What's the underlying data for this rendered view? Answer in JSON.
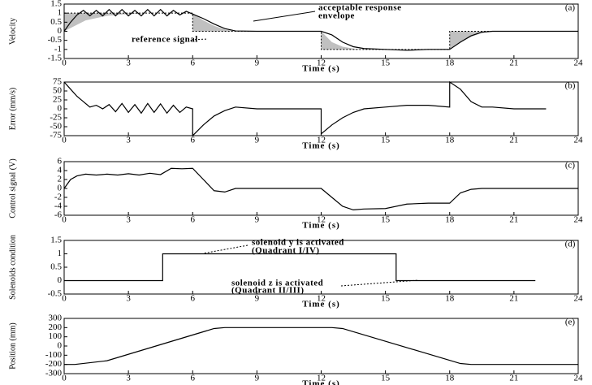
{
  "chart_data": [
    {
      "type": "line",
      "panel_label": "(a)",
      "y_label": "Velocity",
      "x_label": "Time (s)",
      "xlim": [
        0,
        24
      ],
      "xticks": [
        0,
        3,
        6,
        9,
        12,
        15,
        18,
        21,
        24
      ],
      "ylim": [
        -1.5,
        1.5
      ],
      "yticks": [
        1.5,
        1,
        0.5,
        0,
        -0.5,
        -1,
        -1.5
      ],
      "annotations": [
        "acceptable response",
        "envelope",
        "reference signal"
      ],
      "envelope": {
        "color": "#c0c0c0",
        "x": [
          0,
          1,
          2,
          3,
          4,
          6,
          6,
          6.5,
          7,
          7.5,
          8,
          12,
          12,
          12.5,
          13,
          13.5,
          14,
          18,
          18,
          18.5,
          19,
          19.5,
          20,
          24
        ],
        "lower": [
          0,
          0.6,
          0.85,
          0.95,
          1,
          1,
          0,
          0,
          0,
          0,
          0,
          0,
          -1,
          -1,
          -1,
          -1,
          -1,
          -1,
          -1,
          -0.6,
          -0.3,
          -0.1,
          0,
          0
        ],
        "upper": [
          1,
          1,
          1,
          1,
          1,
          1,
          1,
          0.6,
          0.3,
          0.1,
          0,
          0,
          0,
          -0.6,
          -0.85,
          -0.95,
          -1,
          -1,
          0,
          0,
          0,
          0,
          0,
          0
        ]
      },
      "series": [
        {
          "color": "#000000",
          "dash": false,
          "x": [
            0,
            0.3,
            0.6,
            0.9,
            1.2,
            1.5,
            1.8,
            2.1,
            2.4,
            2.7,
            3,
            3.3,
            3.6,
            3.9,
            4.2,
            4.5,
            4.8,
            5.1,
            5.4,
            5.7,
            6,
            6.5,
            7,
            7.5,
            8,
            9,
            10,
            11,
            12,
            12.5,
            13,
            13.5,
            14,
            15,
            16,
            17,
            18,
            18.5,
            19,
            19.5,
            20,
            21,
            22,
            23,
            24
          ],
          "values": [
            0,
            0.5,
            0.9,
            1.15,
            0.85,
            1.15,
            0.85,
            1.2,
            0.85,
            1.2,
            0.85,
            1.15,
            0.85,
            1.2,
            0.85,
            1.2,
            0.85,
            1.15,
            0.9,
            1.1,
            0.95,
            0.7,
            0.4,
            0.15,
            0.02,
            0,
            0,
            0,
            0,
            -0.2,
            -0.6,
            -0.85,
            -0.95,
            -1,
            -1.05,
            -1,
            -1,
            -0.6,
            -0.25,
            -0.05,
            0,
            0,
            0,
            0,
            0
          ]
        },
        {
          "color": "#000000",
          "dash": true,
          "x": [
            0,
            6,
            6,
            12,
            12,
            18,
            18,
            24
          ],
          "values": [
            1,
            1,
            0,
            0,
            -1,
            -1,
            0,
            0
          ]
        }
      ]
    },
    {
      "type": "line",
      "panel_label": "(b)",
      "y_label": "Error (mm/s)",
      "x_label": "Time (s)",
      "xlim": [
        0,
        24
      ],
      "xticks": [
        0,
        3,
        6,
        9,
        12,
        15,
        18,
        21,
        24
      ],
      "ylim": [
        -75,
        75
      ],
      "yticks": [
        75,
        50,
        25,
        0,
        -25,
        -50,
        -75
      ],
      "series": [
        {
          "color": "#000000",
          "dash": false,
          "x": [
            0,
            0.3,
            0.6,
            0.9,
            1.2,
            1.5,
            1.8,
            2.1,
            2.4,
            2.7,
            3,
            3.3,
            3.6,
            3.9,
            4.2,
            4.5,
            4.8,
            5.1,
            5.4,
            5.7,
            6,
            6,
            6.5,
            7,
            7.5,
            8,
            9,
            10,
            11,
            12,
            12,
            12.5,
            13,
            13.5,
            14,
            15,
            16,
            17,
            18,
            18,
            18.5,
            19,
            19.5,
            20,
            21,
            22.5
          ],
          "values": [
            75,
            55,
            35,
            20,
            5,
            10,
            0,
            12,
            -8,
            15,
            -10,
            12,
            -12,
            15,
            -10,
            14,
            -12,
            10,
            -10,
            5,
            0,
            -75,
            -45,
            -20,
            -5,
            5,
            0,
            0,
            0,
            0,
            -70,
            -45,
            -25,
            -10,
            0,
            5,
            10,
            10,
            5,
            75,
            55,
            20,
            5,
            5,
            0,
            0
          ]
        }
      ]
    },
    {
      "type": "line",
      "panel_label": "(c)",
      "y_label": "Control signal (V)",
      "x_label": "Time (s)",
      "xlim": [
        0,
        24
      ],
      "xticks": [
        0,
        3,
        6,
        9,
        12,
        15,
        18,
        21,
        24
      ],
      "ylim": [
        -6,
        6
      ],
      "yticks": [
        6,
        4,
        2,
        0,
        -2,
        -4,
        -6
      ],
      "series": [
        {
          "color": "#000000",
          "dash": false,
          "x": [
            0,
            0.3,
            0.6,
            1,
            1.5,
            2,
            2.5,
            3,
            3.5,
            4,
            4.5,
            5,
            5.5,
            6,
            6.5,
            7,
            7.5,
            8,
            9,
            10,
            11,
            12,
            12.5,
            13,
            13.5,
            14,
            15,
            16,
            17,
            18,
            18.5,
            19,
            19.5,
            20,
            22,
            24
          ],
          "values": [
            0,
            2,
            2.8,
            3.2,
            3,
            3.2,
            3,
            3.3,
            3,
            3.4,
            3.1,
            4.5,
            4.4,
            4.5,
            2,
            -0.5,
            -0.8,
            0,
            0,
            0,
            0,
            0,
            -2,
            -4,
            -4.8,
            -4.6,
            -4.5,
            -3.5,
            -3.3,
            -3.3,
            -1,
            -0.2,
            0,
            0,
            0,
            0
          ]
        }
      ]
    },
    {
      "type": "line",
      "panel_label": "(d)",
      "y_label": "Solenoids condition",
      "x_label": "Time (s)",
      "xlim": [
        0,
        24
      ],
      "xticks": [
        0,
        3,
        6,
        9,
        12,
        15,
        18,
        21,
        24
      ],
      "ylim": [
        -0.5,
        1.5
      ],
      "yticks": [
        1.5,
        1,
        0.5,
        0,
        -0.5
      ],
      "annotations": [
        "solenoid y is activated",
        "(Quadrant I/IV)",
        "solenoid z is activated",
        "(Quadrant II/III)"
      ],
      "series": [
        {
          "color": "#000000",
          "dash": false,
          "x": [
            0,
            4.6,
            4.6,
            15.5,
            15.5,
            22
          ],
          "values": [
            0,
            0,
            1,
            1,
            0,
            0
          ]
        }
      ]
    },
    {
      "type": "line",
      "panel_label": "(e)",
      "y_label": "Position (mm)",
      "x_label": "Time (s)",
      "xlim": [
        0,
        24
      ],
      "xticks": [
        0,
        3,
        6,
        9,
        12,
        15,
        18,
        21,
        24
      ],
      "ylim": [
        -300,
        300
      ],
      "yticks": [
        300,
        200,
        100,
        0,
        -100,
        -200,
        -300
      ],
      "series": [
        {
          "color": "#000000",
          "dash": false,
          "x": [
            0,
            0.5,
            2,
            7,
            7.5,
            12.5,
            13,
            18.5,
            19,
            24
          ],
          "values": [
            -200,
            -200,
            -160,
            190,
            200,
            200,
            190,
            -190,
            -200,
            -200
          ]
        }
      ]
    }
  ]
}
